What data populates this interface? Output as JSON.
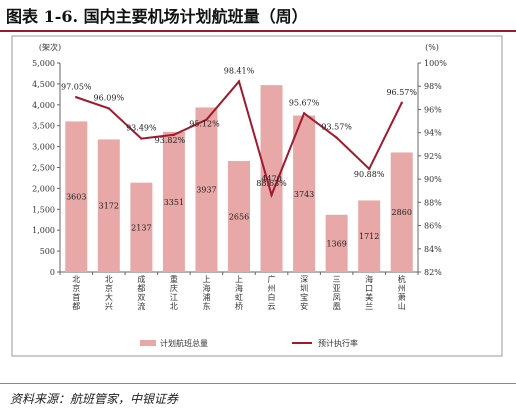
{
  "header": {
    "title": "图表 1-6. 国内主要机场计划航班量（周）"
  },
  "footer": {
    "source": "资料来源：航班管家，中银证券"
  },
  "colors": {
    "bar": "#e8a8a8",
    "line": "#a01a2c",
    "accent": "#9b1b2e"
  },
  "chart_data": {
    "type": "bar",
    "categories": [
      "北京首都",
      "北京大兴",
      "成都双流",
      "重庆江北",
      "上海浦东",
      "上海虹桥",
      "广州白云",
      "深圳宝安",
      "三亚凤凰",
      "海口美兰",
      "杭州萧山"
    ],
    "series": [
      {
        "name": "计划航班总量",
        "type": "bar",
        "axis": "left",
        "values": [
          3603,
          3172,
          2137,
          3351,
          3937,
          2656,
          4470,
          3743,
          1369,
          1712,
          2860
        ],
        "labels": [
          "3603",
          "3172",
          "2137",
          "3351",
          "3937",
          "2656",
          "4470",
          "3743",
          "1369",
          "1712",
          "2860"
        ]
      },
      {
        "name": "预计执行率",
        "type": "line",
        "axis": "right",
        "values": [
          97.05,
          96.09,
          93.49,
          93.82,
          95.12,
          98.41,
          88.63,
          95.67,
          93.57,
          90.88,
          96.57
        ],
        "labels": [
          "97.05%",
          "96.09%",
          "93.49%",
          "93.82%",
          "95.12%",
          "98.41%",
          "88.63%",
          "95.67%",
          "93.57%",
          "90.88%",
          "96.57%"
        ]
      }
    ],
    "ylabel_left": "(架次)",
    "ylabel_right": "(%)",
    "ylim_left": [
      0,
      5000
    ],
    "ylim_right": [
      82,
      100
    ],
    "yticks_left": [
      "0",
      "500",
      "1,000",
      "1,500",
      "2,000",
      "2,500",
      "3,000",
      "3,500",
      "4,000",
      "4,500",
      "5,000"
    ],
    "yticks_right": [
      "82%",
      "84%",
      "86%",
      "88%",
      "90%",
      "92%",
      "94%",
      "96%",
      "98%",
      "100%"
    ],
    "legend": [
      "计划航班总量",
      "预计执行率"
    ],
    "legend_position": "bottom",
    "grid": false
  }
}
